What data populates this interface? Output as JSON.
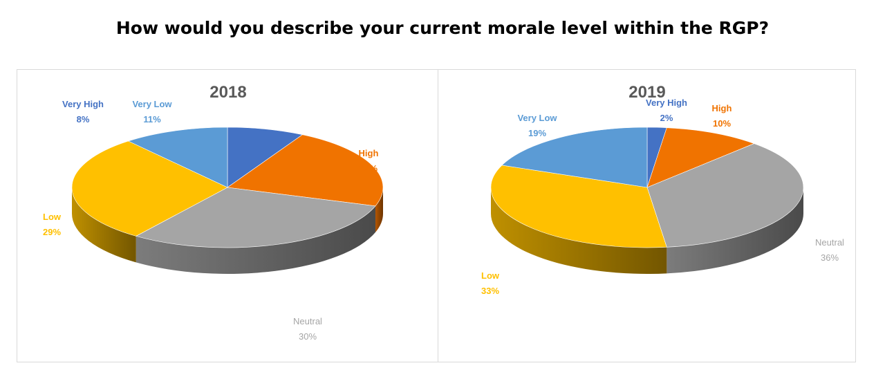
{
  "title": "How would you describe your current morale level within the RGP?",
  "colors": {
    "Very High": "#4472c4",
    "High": "#f07300",
    "Neutral": "#a5a5a5",
    "Low": "#ffc000",
    "Very Low": "#5b9bd5"
  },
  "chart_data": [
    {
      "type": "pie",
      "title": "2018",
      "categories": [
        "Very High",
        "High",
        "Neutral",
        "Low",
        "Very Low"
      ],
      "values": [
        8,
        22,
        30,
        29,
        11
      ],
      "labels": [
        "8%",
        "22%",
        "30%",
        "29%",
        "11%"
      ]
    },
    {
      "type": "pie",
      "title": "2019",
      "categories": [
        "Very High",
        "High",
        "Neutral",
        "Low",
        "Very Low"
      ],
      "values": [
        2,
        10,
        36,
        33,
        19
      ],
      "labels": [
        "2%",
        "10%",
        "36%",
        "33%",
        "19%"
      ]
    }
  ]
}
